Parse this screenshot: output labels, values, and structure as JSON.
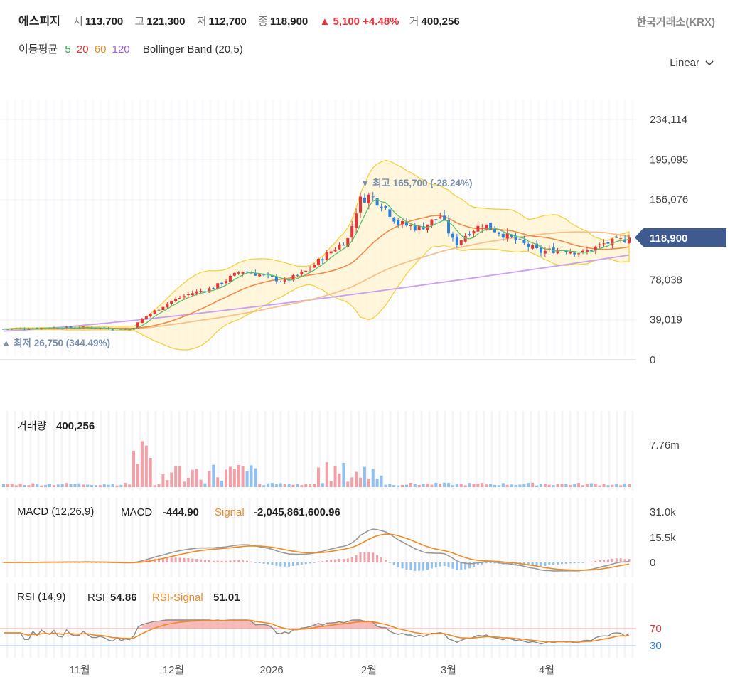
{
  "header": {
    "name": "에스피지",
    "open_label": "시",
    "open": "113,700",
    "high_label": "고",
    "high": "121,300",
    "low_label": "저",
    "low": "112,700",
    "close_label": "종",
    "close": "118,900",
    "change_arrow": "▲",
    "change": "5,100",
    "change_pct": "+4.48%",
    "volume_label": "거",
    "volume": "400,256",
    "exchange": "한국거래소(KRX)"
  },
  "moving_average": {
    "label": "이동평균",
    "periods": [
      {
        "value": "5",
        "color": "#2fa84f"
      },
      {
        "value": "20",
        "color": "#e8333a"
      },
      {
        "value": "60",
        "color": "#f08a24"
      },
      {
        "value": "120",
        "color": "#9b5de5"
      }
    ],
    "bollinger": "Bollinger Band (20,5)"
  },
  "scale_selector": "Linear",
  "chart_data": [
    {
      "type": "candlestick",
      "y_ticks": [
        "234,114",
        "195,095",
        "156,076",
        "78,038",
        "39,019",
        "0"
      ],
      "y_tick_values": [
        234114,
        195095,
        156076,
        78038,
        39019,
        0
      ],
      "current_price_label": "118,900",
      "current_price": 118900,
      "max_annotation": "▼ 최고 165,700 (-28.24%)",
      "max_value": 165700,
      "min_annotation": "▲ 최저 26,750 (344.49%)",
      "min_value": 26750,
      "x_labels": [
        "11월",
        "12월",
        "2026",
        "2월",
        "3월",
        "4월"
      ],
      "series_colors": {
        "ma5": "#2fa84f",
        "ma20": "#e8333a",
        "ma60": "#f08a24",
        "ma120": "#9b5de5",
        "band": "#f5d142"
      }
    },
    {
      "type": "bar",
      "title": "거래량",
      "value": "400,256",
      "y_tick": "7.76m",
      "y_tick_value": 7760000
    },
    {
      "type": "line",
      "title": "MACD (12,26,9)",
      "macd_label": "MACD",
      "macd_value": "-444.90",
      "signal_label": "Signal",
      "signal_value": "-2,045,861,600.96",
      "y_ticks": [
        "31.0k",
        "15.5k",
        "0"
      ]
    },
    {
      "type": "line",
      "title": "RSI (14,9)",
      "rsi_label": "RSI",
      "rsi_value": "54.86",
      "signal_label": "RSI-Signal",
      "signal_value": "51.01",
      "y_ticks": [
        "70",
        "30"
      ]
    }
  ]
}
